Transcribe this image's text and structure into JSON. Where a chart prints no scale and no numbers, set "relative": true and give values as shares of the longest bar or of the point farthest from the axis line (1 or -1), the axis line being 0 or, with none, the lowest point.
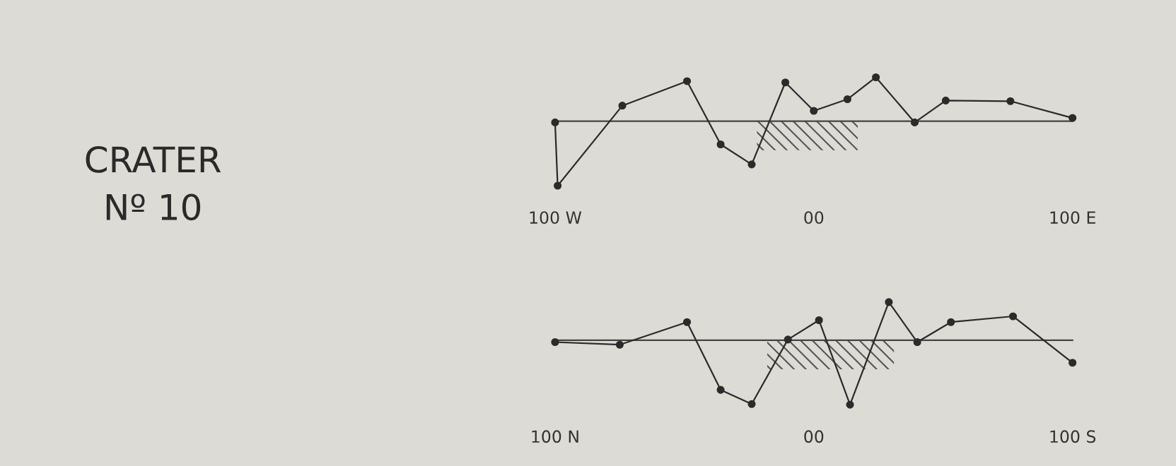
{
  "chart_data": [
    {
      "type": "other",
      "title": "CRATER\nNº 10"
    },
    {
      "type": "line",
      "relative": true,
      "marker": "circle",
      "line_style": "solid",
      "grid": false,
      "x": [
        -100,
        -99,
        -74,
        -49,
        -36,
        -24,
        -11,
        0,
        13,
        24,
        39,
        51,
        76,
        100
      ],
      "series": [
        {
          "color": "#2b2b2b",
          "values": [
            -0.02,
            -1,
            0.24,
            0.62,
            -0.36,
            -0.67,
            0.6,
            0.16,
            0.34,
            0.68,
            -0.02,
            0.32,
            0.31,
            0.05
          ]
        }
      ],
      "xlim": [
        -100,
        100
      ],
      "xticks": [
        {
          "value": -100,
          "label": "100 W"
        },
        {
          "value": 0,
          "label": "00"
        },
        {
          "value": 100,
          "label": "100 E"
        }
      ],
      "bands": [
        {
          "axis": "x",
          "from": -22,
          "to": 17,
          "color": "#555555"
        }
      ]
    },
    {
      "type": "line",
      "relative": true,
      "marker": "circle",
      "line_style": "solid",
      "grid": false,
      "x": [
        -100,
        -75,
        -49,
        -36,
        -24,
        -10,
        2,
        14,
        29,
        40,
        53,
        77,
        100
      ],
      "series": [
        {
          "color": "#2b2b2b",
          "values": [
            -0.03,
            -0.07,
            0.28,
            -0.77,
            -0.99,
            0.01,
            0.31,
            -1,
            0.59,
            -0.03,
            0.28,
            0.37,
            -0.35
          ]
        }
      ],
      "xlim": [
        -100,
        100
      ],
      "xticks": [
        {
          "value": -100,
          "label": "100 N"
        },
        {
          "value": 0,
          "label": "00"
        },
        {
          "value": 100,
          "label": "100 S"
        }
      ],
      "bands": [
        {
          "axis": "x",
          "from": -18,
          "to": 31,
          "color": "#555555"
        }
      ]
    }
  ]
}
